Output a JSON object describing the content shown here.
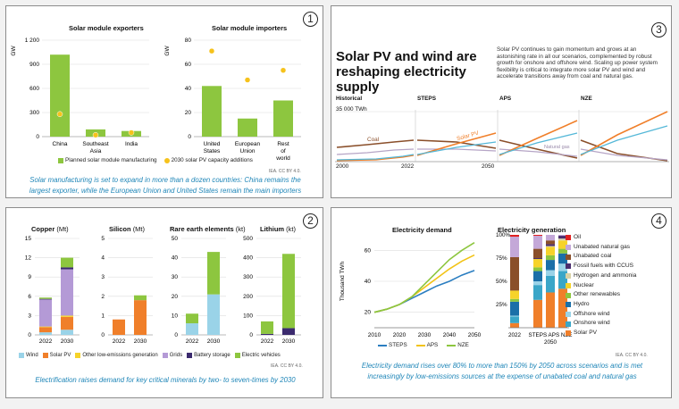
{
  "panel1": {
    "number": "1",
    "exporters": {
      "title": "Solar module exporters",
      "unit": "GW",
      "yticks": [
        "1 200",
        "900",
        "600",
        "300",
        "0"
      ],
      "categories": [
        "China",
        "Southeast Asia",
        "India"
      ]
    },
    "importers": {
      "title": "Solar module importers",
      "unit": "GW",
      "yticks": [
        "80",
        "60",
        "40",
        "20",
        "0"
      ],
      "categories": [
        "United States",
        "European Union",
        "Rest of world"
      ]
    },
    "legend_bar": "Planned solar module manufacturing",
    "legend_dot": "2030 solar PV capacity additions",
    "credit": "IEA. CC BY 4.0.",
    "caption": "Solar manufacturing is set to expand in more than a dozen countries: China remains the largest exporter, while the European Union and United States remain the main importers"
  },
  "panel2": {
    "number": "2",
    "charts": [
      {
        "title": "Copper",
        "unit": "(Mt)",
        "yticks": [
          "15",
          "12",
          "9",
          "6",
          "3",
          "0"
        ]
      },
      {
        "title": "Silicon",
        "unit": "(Mt)",
        "yticks": [
          "5",
          "4",
          "3",
          "2",
          "1",
          "0"
        ]
      },
      {
        "title": "Rare earth elements",
        "unit": "(kt)",
        "yticks": [
          "50",
          "40",
          "30",
          "20",
          "10",
          "0"
        ]
      },
      {
        "title": "Lithium",
        "unit": "(kt)",
        "yticks": [
          "500",
          "400",
          "300",
          "200",
          "100",
          "0"
        ]
      }
    ],
    "years": [
      "2022",
      "2030"
    ],
    "legend": [
      {
        "label": "Wind",
        "color": "#9ad3e8"
      },
      {
        "label": "Solar PV",
        "color": "#f07f2a"
      },
      {
        "label": "Other low-emissions generation",
        "color": "#f6d32a"
      },
      {
        "label": "Grids",
        "color": "#b49ad6"
      },
      {
        "label": "Battery storage",
        "color": "#3b2a6e"
      },
      {
        "label": "Electric vehicles",
        "color": "#8dc63f"
      }
    ],
    "credit": "IEA. CC BY 4.0.",
    "caption": "Electrification raises demand for key critical minerals by two- to seven-times by 2030"
  },
  "panel3": {
    "number": "3",
    "headline": "Solar PV and wind are reshaping electricity supply",
    "body": "Solar PV continues to gain momentum and grows at an astonishing rate in all our scenarios, complemented by robust growth for onshore and offshore wind. Scaling up power system flexibility is critical to integrate more solar PV and wind and accelerate transitions away from coal and natural gas.",
    "scenarios": [
      "Historical",
      "STEPS",
      "APS",
      "NZE"
    ],
    "scale_label": "35 000 TWh",
    "labels": {
      "coal": "Coal",
      "solar": "Solar PV",
      "gas": "Natural gas"
    },
    "xticks": [
      "2000",
      "2022",
      "2050"
    ]
  },
  "panel4": {
    "number": "4",
    "demand_title": "Electricity demand",
    "demand_ylabel": "Thousand TWh",
    "demand_yticks": [
      "60",
      "40",
      "20"
    ],
    "demand_xticks": [
      "2010",
      "2020",
      "2030",
      "2040",
      "2050"
    ],
    "demand_legend": [
      {
        "label": "STEPS",
        "color": "#2b7ec1"
      },
      {
        "label": "APS",
        "color": "#f2c316"
      },
      {
        "label": "NZE",
        "color": "#8dc63f"
      }
    ],
    "gen_title": "Electricity generation",
    "gen_yticks": [
      "100%",
      "75%",
      "50%",
      "25%"
    ],
    "gen_xlabels": [
      "2022",
      "STEPS APS NZE"
    ],
    "gen_xsub": "2050",
    "gen_legend": [
      {
        "label": "Oil",
        "color": "#e02020"
      },
      {
        "label": "Unabated natural gas",
        "color": "#c4a8d8"
      },
      {
        "label": "Unabated coal",
        "color": "#8a4f2a"
      },
      {
        "label": "Fossil fuels with CCUS",
        "color": "#4a2d6e"
      },
      {
        "label": "Hydrogen and ammonia",
        "color": "#d9d2a6"
      },
      {
        "label": "Nuclear",
        "color": "#f6d32a"
      },
      {
        "label": "Other renewables",
        "color": "#8dc63f"
      },
      {
        "label": "Hydro",
        "color": "#1a6fa8"
      },
      {
        "label": "Offshore wind",
        "color": "#9ad3e8"
      },
      {
        "label": "Onshore wind",
        "color": "#3aa6c8"
      },
      {
        "label": "Solar PV",
        "color": "#f07f2a"
      }
    ],
    "credit": "IEA. CC BY 4.0.",
    "caption": "Electricity demand rises over 80% to more than 150% by 2050 across scenarios and is met increasingly by low-emissions sources at the expense of unabated coal and natural gas"
  },
  "chart_data": [
    {
      "type": "bar",
      "title": "Solar module exporters",
      "ylabel": "GW",
      "ylim": [
        0,
        1200
      ],
      "categories": [
        "China",
        "Southeast Asia",
        "India"
      ],
      "series": [
        {
          "name": "Planned solar module manufacturing",
          "values": [
            1020,
            90,
            70
          ]
        }
      ],
      "points": {
        "name": "2030 solar PV capacity additions",
        "values": [
          280,
          20,
          50
        ]
      }
    },
    {
      "type": "bar",
      "title": "Solar module importers",
      "ylabel": "GW",
      "ylim": [
        0,
        80
      ],
      "categories": [
        "United States",
        "European Union",
        "Rest of world"
      ],
      "series": [
        {
          "name": "Planned solar module manufacturing",
          "values": [
            42,
            15,
            30
          ]
        }
      ],
      "points": {
        "name": "2030 solar PV capacity additions",
        "values": [
          71,
          47,
          55
        ]
      }
    },
    {
      "type": "bar",
      "title": "Copper (Mt)",
      "ylim": [
        0,
        15
      ],
      "categories": [
        "2022",
        "2030"
      ],
      "series": [
        {
          "name": "Wind",
          "values": [
            0.4,
            0.8
          ]
        },
        {
          "name": "Solar PV",
          "values": [
            0.8,
            2.0
          ]
        },
        {
          "name": "Other low-emissions generation",
          "values": [
            0.1,
            0.2
          ]
        },
        {
          "name": "Grids",
          "values": [
            4.2,
            7.2
          ]
        },
        {
          "name": "Battery storage",
          "values": [
            0.1,
            0.3
          ]
        },
        {
          "name": "Electric vehicles",
          "values": [
            0.2,
            1.5
          ]
        }
      ]
    },
    {
      "type": "bar",
      "title": "Silicon (Mt)",
      "ylim": [
        0,
        5
      ],
      "categories": [
        "2022",
        "2030"
      ],
      "series": [
        {
          "name": "Solar PV",
          "values": [
            0.8,
            1.8
          ]
        },
        {
          "name": "Electric vehicles",
          "values": [
            0,
            0.25
          ]
        }
      ]
    },
    {
      "type": "bar",
      "title": "Rare earth elements (kt)",
      "ylim": [
        0,
        50
      ],
      "categories": [
        "2022",
        "2030"
      ],
      "series": [
        {
          "name": "Wind",
          "values": [
            6,
            21
          ]
        },
        {
          "name": "Electric vehicles",
          "values": [
            5,
            22
          ]
        }
      ]
    },
    {
      "type": "bar",
      "title": "Lithium (kt)",
      "ylim": [
        0,
        500
      ],
      "categories": [
        "2022",
        "2030"
      ],
      "series": [
        {
          "name": "Battery storage",
          "values": [
            5,
            35
          ]
        },
        {
          "name": "Electric vehicles",
          "values": [
            65,
            385
          ]
        }
      ]
    },
    {
      "type": "line",
      "title": "Electricity demand",
      "ylabel": "Thousand TWh",
      "x": [
        2010,
        2015,
        2020,
        2025,
        2030,
        2035,
        2040,
        2045,
        2050
      ],
      "series": [
        {
          "name": "STEPS",
          "values": [
            20,
            22,
            25,
            29,
            33,
            37,
            40,
            44,
            47
          ]
        },
        {
          "name": "APS",
          "values": [
            20,
            22,
            25,
            30,
            36,
            42,
            48,
            53,
            57
          ]
        },
        {
          "name": "NZE",
          "values": [
            20,
            22,
            25,
            30,
            38,
            46,
            54,
            60,
            65
          ]
        }
      ]
    },
    {
      "type": "bar",
      "title": "Electricity generation",
      "ylim": [
        0,
        100
      ],
      "categories": [
        "2022",
        "STEPS",
        "APS",
        "NZE"
      ],
      "series": [
        {
          "name": "Solar PV",
          "values": [
            5,
            30,
            38,
            42
          ]
        },
        {
          "name": "Onshore wind",
          "values": [
            7,
            16,
            18,
            19
          ]
        },
        {
          "name": "Offshore wind",
          "values": [
            1,
            4,
            6,
            8
          ]
        },
        {
          "name": "Hydro",
          "values": [
            15,
            11,
            11,
            11
          ]
        },
        {
          "name": "Other renewables",
          "values": [
            3,
            4,
            5,
            5
          ]
        },
        {
          "name": "Nuclear",
          "values": [
            9,
            9,
            9,
            9
          ]
        },
        {
          "name": "Hydrogen and ammonia",
          "values": [
            0,
            0,
            1,
            2
          ]
        },
        {
          "name": "Fossil fuels with CCUS",
          "values": [
            0,
            1,
            2,
            3
          ]
        },
        {
          "name": "Unabated coal",
          "values": [
            36,
            10,
            4,
            0
          ]
        },
        {
          "name": "Unabated natural gas",
          "values": [
            22,
            14,
            6,
            1
          ]
        },
        {
          "name": "Oil",
          "values": [
            2,
            1,
            0,
            0
          ]
        }
      ]
    }
  ]
}
